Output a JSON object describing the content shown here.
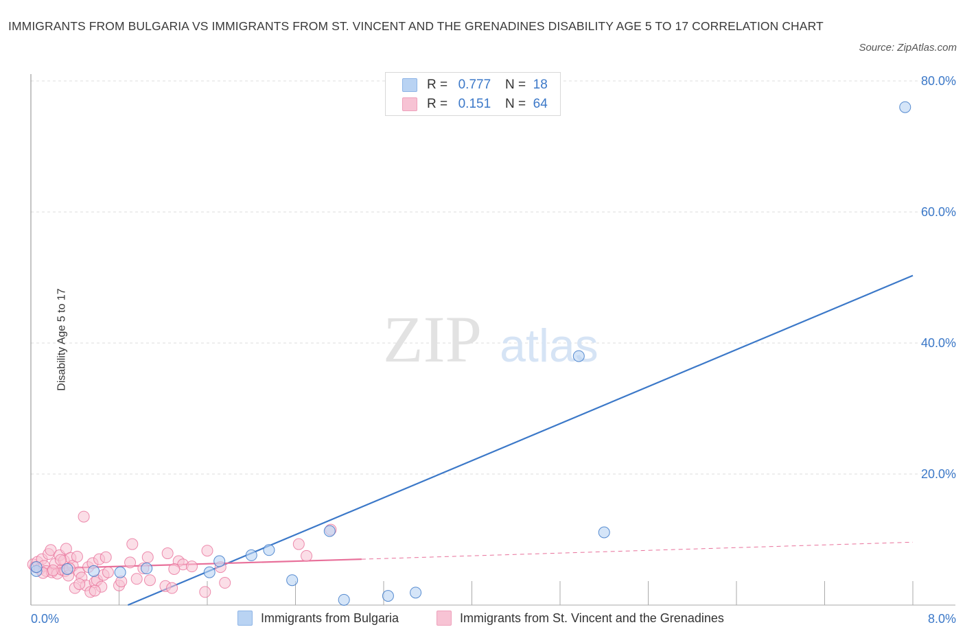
{
  "header": {
    "title": "IMMIGRANTS FROM BULGARIA VS IMMIGRANTS FROM ST. VINCENT AND THE GRENADINES DISABILITY AGE 5 TO 17 CORRELATION CHART",
    "source": "Source: ZipAtlas.com"
  },
  "legend": {
    "row1": {
      "r_label": "R =",
      "r_value": "0.777",
      "n_label": "N =",
      "n_value": "18"
    },
    "row2": {
      "r_label": "R =",
      "r_value": "0.151",
      "n_label": "N =",
      "n_value": "64"
    }
  },
  "bottom_legend": {
    "series1": "Immigrants from Bulgaria",
    "series2": "Immigrants from St. Vincent and the Grenadines"
  },
  "watermark": {
    "zip": "ZIP",
    "atlas": "atlas"
  },
  "colors": {
    "blue": "#3b78c8",
    "blue_fill": "#b9d3f3",
    "pink": "#e8709a",
    "pink_fill": "#f7c3d4",
    "grid": "#dddddd"
  },
  "chart_data": {
    "type": "scatter",
    "title": "IMMIGRANTS FROM BULGARIA VS IMMIGRANTS FROM ST. VINCENT AND THE GRENADINES DISABILITY AGE 5 TO 17 CORRELATION CHART",
    "xlabel": "",
    "ylabel": "Disability Age 5 to 17",
    "xlim": [
      0,
      8
    ],
    "ylim": [
      0,
      80
    ],
    "x_tick_labels": [
      "0.0%",
      "8.0%"
    ],
    "y_ticks": [
      20,
      40,
      60,
      80
    ],
    "y_tick_labels": [
      "20.0%",
      "40.0%",
      "60.0%",
      "80.0%"
    ],
    "grid": true,
    "legend_position": "top-center",
    "series": [
      {
        "name": "Immigrants from Bulgaria",
        "color": "#3b78c8",
        "points": [
          [
            0.05,
            5.2
          ],
          [
            0.33,
            5.5
          ],
          [
            0.57,
            5.2
          ],
          [
            0.81,
            5.0
          ],
          [
            1.05,
            5.6
          ],
          [
            1.62,
            5.0
          ],
          [
            1.71,
            6.7
          ],
          [
            2.0,
            7.6
          ],
          [
            2.16,
            8.4
          ],
          [
            2.37,
            3.8
          ],
          [
            2.71,
            11.3
          ],
          [
            2.84,
            0.8
          ],
          [
            3.24,
            1.4
          ],
          [
            3.49,
            1.9
          ],
          [
            4.97,
            38.0
          ],
          [
            5.2,
            11.1
          ],
          [
            7.93,
            76.0
          ],
          [
            0.05,
            5.8
          ]
        ],
        "trend": {
          "x1": 0.88,
          "y1": 0.0,
          "x2": 8.0,
          "y2": 50.3
        }
      },
      {
        "name": "Immigrants from St. Vincent and the Grenadines",
        "color": "#e8709a",
        "points": [
          [
            0.02,
            6.2
          ],
          [
            0.04,
            5.8
          ],
          [
            0.06,
            6.6
          ],
          [
            0.08,
            5.5
          ],
          [
            0.1,
            7.0
          ],
          [
            0.12,
            6.0
          ],
          [
            0.14,
            5.2
          ],
          [
            0.16,
            7.8
          ],
          [
            0.18,
            8.4
          ],
          [
            0.19,
            5.0
          ],
          [
            0.22,
            6.3
          ],
          [
            0.24,
            4.8
          ],
          [
            0.26,
            7.6
          ],
          [
            0.28,
            5.4
          ],
          [
            0.3,
            6.8
          ],
          [
            0.31,
            5.2
          ],
          [
            0.32,
            8.6
          ],
          [
            0.34,
            4.5
          ],
          [
            0.36,
            7.2
          ],
          [
            0.38,
            6.0
          ],
          [
            0.4,
            2.6
          ],
          [
            0.42,
            7.4
          ],
          [
            0.44,
            5.0
          ],
          [
            0.46,
            4.2
          ],
          [
            0.48,
            13.5
          ],
          [
            0.5,
            3.0
          ],
          [
            0.52,
            5.8
          ],
          [
            0.54,
            2.0
          ],
          [
            0.56,
            6.4
          ],
          [
            0.58,
            3.5
          ],
          [
            0.6,
            3.8
          ],
          [
            0.62,
            7.0
          ],
          [
            0.64,
            2.8
          ],
          [
            0.66,
            4.6
          ],
          [
            0.68,
            7.3
          ],
          [
            0.8,
            3.0
          ],
          [
            0.82,
            3.6
          ],
          [
            0.9,
            6.5
          ],
          [
            0.92,
            9.3
          ],
          [
            0.96,
            4.0
          ],
          [
            1.02,
            5.6
          ],
          [
            1.06,
            7.3
          ],
          [
            1.08,
            3.8
          ],
          [
            1.22,
            2.9
          ],
          [
            1.24,
            7.9
          ],
          [
            1.28,
            2.6
          ],
          [
            1.34,
            6.7
          ],
          [
            1.38,
            6.2
          ],
          [
            1.46,
            5.9
          ],
          [
            1.58,
            2.0
          ],
          [
            1.6,
            8.3
          ],
          [
            1.72,
            5.8
          ],
          [
            1.76,
            3.4
          ],
          [
            2.72,
            11.5
          ],
          [
            2.43,
            9.3
          ],
          [
            2.5,
            7.5
          ],
          [
            0.11,
            4.9
          ],
          [
            0.2,
            5.3
          ],
          [
            0.27,
            6.9
          ],
          [
            0.35,
            5.6
          ],
          [
            0.44,
            3.2
          ],
          [
            0.58,
            2.2
          ],
          [
            1.3,
            5.5
          ],
          [
            0.7,
            5.0
          ]
        ],
        "trend": {
          "x1": 0.0,
          "y1": 5.5,
          "x2": 3.0,
          "y2": 7.0
        },
        "trend_extension": {
          "x1": 3.0,
          "y1": 7.0,
          "x2": 8.0,
          "y2": 9.6
        }
      }
    ]
  }
}
